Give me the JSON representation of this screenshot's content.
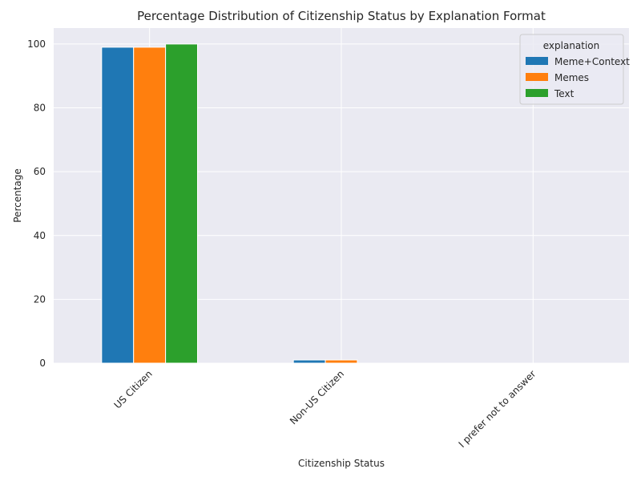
{
  "chart_data": {
    "type": "bar",
    "title": "Percentage Distribution of Citizenship Status by Explanation Format",
    "xlabel": "Citizenship Status",
    "ylabel": "Percentage",
    "categories": [
      "US Citizen",
      "Non-US Citizen",
      "I prefer not to answer"
    ],
    "series": [
      {
        "name": "Meme+Context",
        "color": "#1f77b4",
        "values": [
          99,
          1,
          0
        ]
      },
      {
        "name": "Memes",
        "color": "#ff7f0e",
        "values": [
          99,
          1,
          0
        ]
      },
      {
        "name": "Text",
        "color": "#2ca02c",
        "values": [
          100,
          0,
          0
        ]
      }
    ],
    "ylim": [
      0,
      105
    ],
    "yticks": [
      0,
      20,
      40,
      60,
      80,
      100
    ],
    "legend_title": "explanation",
    "legend_position": "top-right",
    "grid": true,
    "background": "#eaeaf2"
  }
}
